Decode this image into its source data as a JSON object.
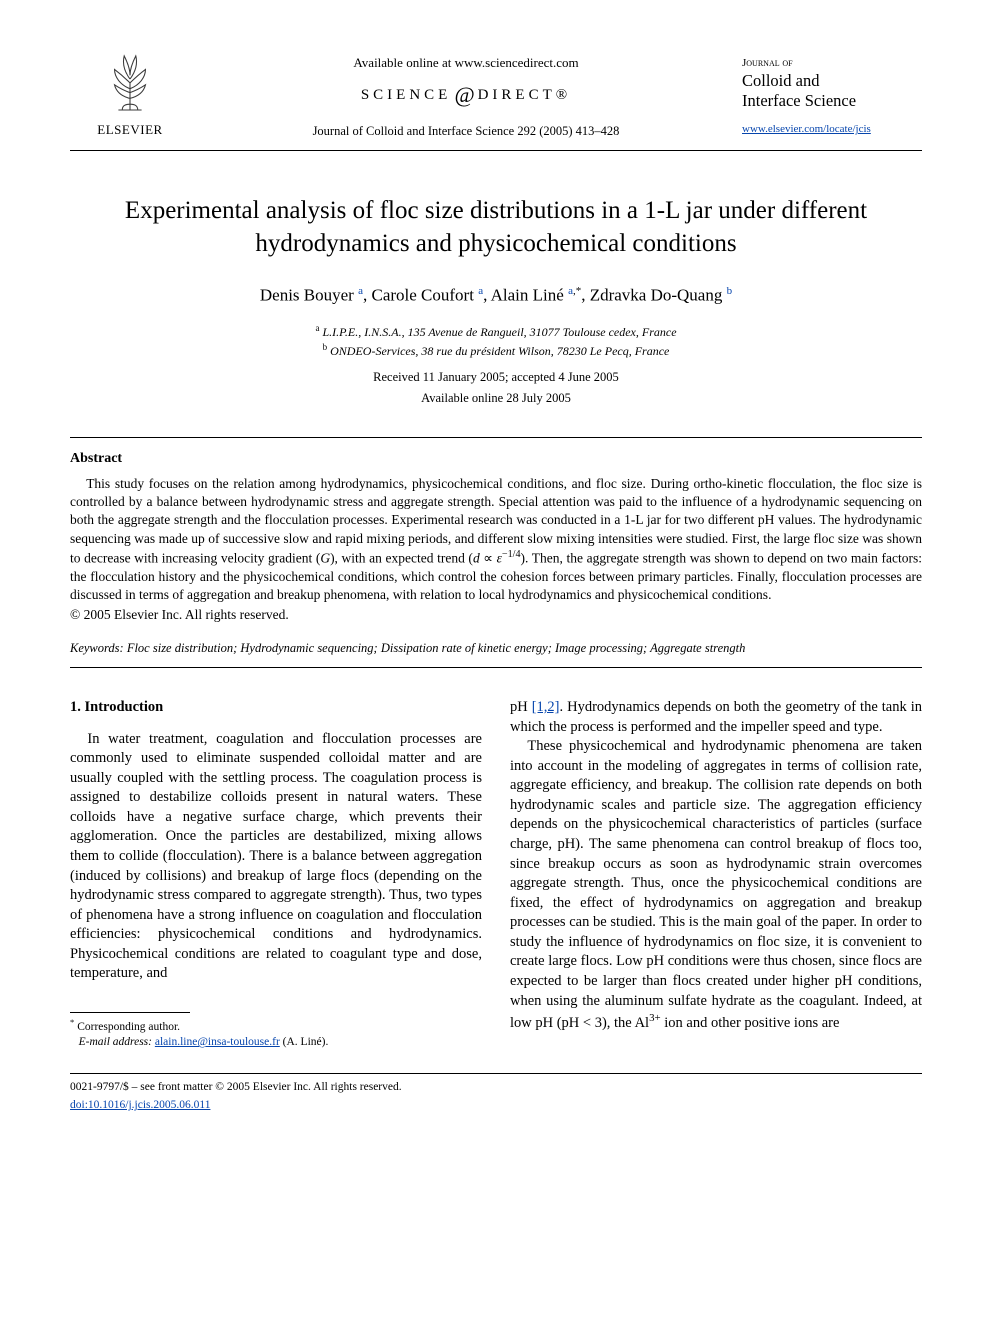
{
  "header": {
    "available": "Available online at www.sciencedirect.com",
    "sd_left": "SCIENCE",
    "sd_right": "DIRECT®",
    "journal_line": "Journal of Colloid and Interface Science 292 (2005) 413–428",
    "publisher": "ELSEVIER",
    "jblock_small": "Journal of",
    "jblock_l1": "Colloid and",
    "jblock_l2": "Interface Science",
    "locate": "www.elsevier.com/locate/jcis"
  },
  "title": "Experimental analysis of floc size distributions in a 1-L jar under different hydrodynamics and physicochemical conditions",
  "authors_html": "Denis Bouyer <sup><a href=\"#\">a</a></sup>, Carole Coufort <sup><a href=\"#\">a</a></sup>, Alain Liné <sup><a href=\"#\">a</a>,*</sup>, Zdravka Do-Quang <sup><a href=\"#\">b</a></sup>",
  "affiliations": {
    "a": "L.I.P.E., I.N.S.A., 135 Avenue de Rangueil, 31077 Toulouse cedex, France",
    "b": "ONDEO-Services, 38 rue du président Wilson, 78230 Le Pecq, France"
  },
  "dates": {
    "received_accepted": "Received 11 January 2005; accepted 4 June 2005",
    "online": "Available online 28 July 2005"
  },
  "abstract": {
    "heading": "Abstract",
    "text_html": "This study focuses on the relation among hydrodynamics, physicochemical conditions, and floc size. During ortho-kinetic flocculation, the floc size is controlled by a balance between hydrodynamic stress and aggregate strength. Special attention was paid to the influence of a hydrodynamic sequencing on both the aggregate strength and the flocculation processes. Experimental research was conducted in a 1-L jar for two different pH values. The hydrodynamic sequencing was made up of successive slow and rapid mixing periods, and different slow mixing intensities were studied. First, the large floc size was shown to decrease with increasing velocity gradient (<i>G</i>), with an expected trend (<i>d</i> ∝ <i>ε</i><sup>−1/4</sup>). Then, the aggregate strength was shown to depend on two main factors: the flocculation history and the physicochemical conditions, which control the cohesion forces between primary particles. Finally, flocculation processes are discussed in terms of aggregation and breakup phenomena, with relation to local hydrodynamics and physicochemical conditions.",
    "copyright": "© 2005 Elsevier Inc. All rights reserved."
  },
  "keywords": {
    "label": "Keywords:",
    "list": "Floc size distribution; Hydrodynamic sequencing; Dissipation rate of kinetic energy; Image processing; Aggregate strength"
  },
  "section1": {
    "heading": "1. Introduction",
    "col1_html": "In water treatment, coagulation and flocculation processes are commonly used to eliminate suspended colloidal matter and are usually coupled with the settling process. The coagulation process is assigned to destabilize colloids present in natural waters. These colloids have a negative surface charge, which prevents their agglomeration. Once the particles are destabilized, mixing allows them to collide (flocculation). There is a balance between aggregation (induced by collisions) and breakup of large flocs (depending on the hydrodynamic stress compared to aggregate strength). Thus, two types of phenomena have a strong influence on coagulation and flocculation efficiencies: physicochemical conditions and hydrodynamics. Physicochemical conditions are related to coagulant type and dose, temperature, and",
    "col2_p1_html": "pH <a class=\"ref-link\" href=\"#\">[1,2]</a>. Hydrodynamics depends on both the geometry of the tank in which the process is performed and the impeller speed and type.",
    "col2_p2_html": "These physicochemical and hydrodynamic phenomena are taken into account in the modeling of aggregates in terms of collision rate, aggregate efficiency, and breakup. The collision rate depends on both hydrodynamic scales and particle size. The aggregation efficiency depends on the physicochemical characteristics of particles (surface charge, pH). The same phenomena can control breakup of flocs too, since breakup occurs as soon as hydrodynamic strain overcomes aggregate strength. Thus, once the physicochemical conditions are fixed, the effect of hydrodynamics on aggregation and breakup processes can be studied. This is the main goal of the paper. In order to study the influence of hydrodynamics on floc size, it is convenient to create large flocs. Low pH conditions were thus chosen, since flocs are expected to be larger than flocs created under higher pH conditions, when using the aluminum sulfate hydrate as the coagulant. Indeed, at low pH (pH &lt; 3), the Al<sup>3+</sup> ion and other positive ions are"
  },
  "footnote": {
    "corr": "Corresponding author.",
    "email_label": "E-mail address:",
    "email": "alain.line@insa-toulouse.fr",
    "email_name": "(A. Liné)."
  },
  "footer": {
    "line": "0021-9797/$ – see front matter © 2005 Elsevier Inc. All rights reserved.",
    "doi": "doi:10.1016/j.jcis.2005.06.011"
  },
  "colors": {
    "link": "#0645ad",
    "text": "#000000",
    "bg": "#ffffff"
  }
}
